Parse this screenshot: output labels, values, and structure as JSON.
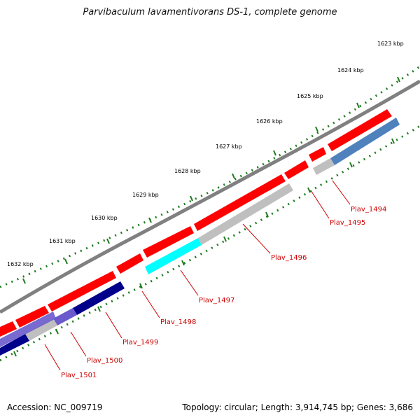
{
  "title": "Parvibaculum lavamentivorans DS-1, complete genome",
  "footer": {
    "accession": "Accession: NC_009719",
    "topology": "Topology: circular; Length: 3,914,745 bp; Genes: 3,686"
  },
  "colors": {
    "backbone": "#808080",
    "cds": "#ff0000",
    "blast_gray": "#bfbfbf",
    "blast_cyan": "#00ffff",
    "blast_steel": "#4f81bd",
    "blast_purple": "#6a5acd",
    "blast_navy": "#00008b",
    "tick_green": "#1e7b1e",
    "label_red": "#cc0000"
  },
  "scale_labels": [
    "1623 kbp",
    "1624 kbp",
    "1625 kbp",
    "1626 kbp",
    "1627 kbp",
    "1628 kbp",
    "1629 kbp",
    "1630 kbp",
    "1631 kbp",
    "1632 kbp"
  ],
  "genes": [
    "Plav_1494",
    "Plav_1495",
    "Plav_1496",
    "Plav_1497",
    "Plav_1498",
    "Plav_1499",
    "Plav_1500",
    "Plav_1501"
  ]
}
